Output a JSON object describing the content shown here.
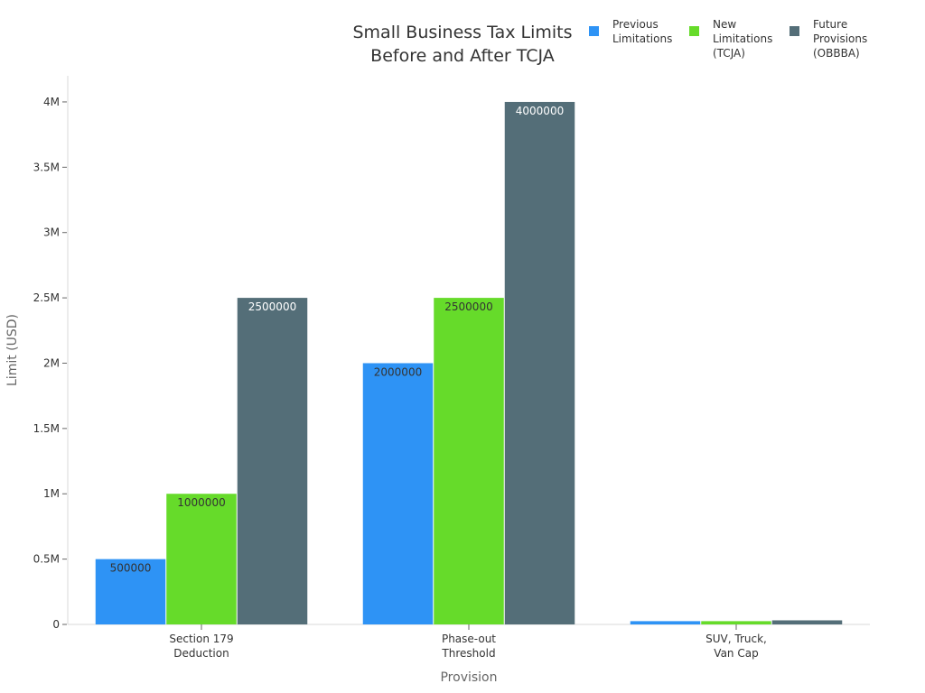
{
  "chart_data": {
    "type": "bar",
    "title": [
      "Small Business Tax Limits",
      "Before and After TCJA"
    ],
    "xlabel": "Provision",
    "ylabel": "Limit (USD)",
    "ylim": [
      0,
      4200000
    ],
    "y_ticks": [
      {
        "value": 0,
        "label": "0"
      },
      {
        "value": 500000,
        "label": "0.5M"
      },
      {
        "value": 1000000,
        "label": "1M"
      },
      {
        "value": 1500000,
        "label": "1.5M"
      },
      {
        "value": 2000000,
        "label": "2M"
      },
      {
        "value": 2500000,
        "label": "2.5M"
      },
      {
        "value": 3000000,
        "label": "3M"
      },
      {
        "value": 3500000,
        "label": "3.5M"
      },
      {
        "value": 4000000,
        "label": "4M"
      }
    ],
    "categories": [
      [
        "Section 179",
        "Deduction"
      ],
      [
        "Phase-out",
        "Threshold"
      ],
      [
        "SUV, Truck,",
        "Van Cap"
      ]
    ],
    "series": [
      {
        "name": [
          "Previous",
          "Limitations"
        ],
        "color": "#2e93f5",
        "values": [
          500000,
          2000000,
          25000
        ],
        "labels": [
          "500000",
          "2000000",
          ""
        ]
      },
      {
        "name": [
          "New",
          "Limitations",
          "(TCJA)"
        ],
        "color": "#66db2a",
        "values": [
          1000000,
          2500000,
          25000
        ],
        "labels": [
          "1000000",
          "2500000",
          ""
        ]
      },
      {
        "name": [
          "Future",
          "Provisions",
          "(OBBBA)"
        ],
        "color": "#546e78",
        "values": [
          2500000,
          4000000,
          31300
        ],
        "labels": [
          "2500000",
          "4000000",
          ""
        ]
      }
    ],
    "legend_position": "top-right",
    "grid": false
  }
}
